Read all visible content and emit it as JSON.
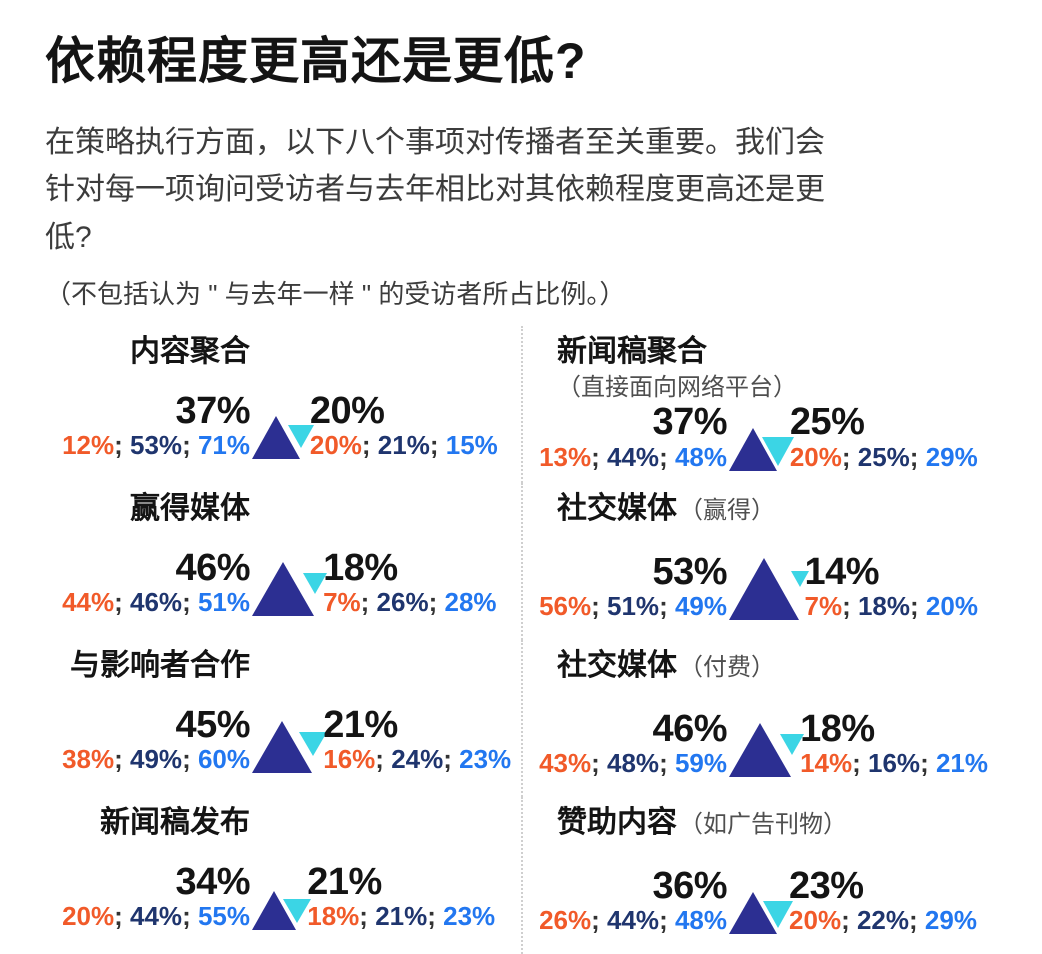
{
  "header": {
    "title": "依赖程度更高还是更低?",
    "description": "在策略执行方面，以下八个事项对传播者至关重要。我们会针对每一项询问受访者与去年相比对其依赖程度更高还是更低?",
    "note": "（不包括认为 \" 与去年一样 \" 的受访者所占比例。）"
  },
  "colors": {
    "up_triangle": "#2c2f92",
    "down_triangle": "#3bd5e5",
    "breakdown_1": "#f15a29",
    "breakdown_2": "#1f356e",
    "breakdown_3": "#2277f0",
    "separator": "#333333",
    "heading": "#141414",
    "body_text": "#3c3c3c",
    "note_text": "#4f4f4f",
    "divider": "#cfcfcf"
  },
  "chart_data": {
    "type": "pictogram",
    "title": "依赖程度更高还是更低?",
    "unit": "%",
    "layout": "2-column grid, up-triangle = reliance higher, down-triangle = reliance lower, triangle size proportional to value",
    "items": [
      {
        "name": "内容聚合",
        "note": "",
        "increase": {
          "pct": 37,
          "breakdown": [
            12,
            53,
            71
          ]
        },
        "decrease": {
          "pct": 20,
          "breakdown": [
            20,
            21,
            15
          ]
        }
      },
      {
        "name": "新闻稿聚合",
        "note": "（直接面向网络平台）",
        "note_block": true,
        "increase": {
          "pct": 37,
          "breakdown": [
            13,
            44,
            48
          ]
        },
        "decrease": {
          "pct": 25,
          "breakdown": [
            20,
            25,
            29
          ]
        }
      },
      {
        "name": "赢得媒体",
        "note": "",
        "increase": {
          "pct": 46,
          "breakdown": [
            44,
            46,
            51
          ]
        },
        "decrease": {
          "pct": 18,
          "breakdown": [
            7,
            26,
            28
          ]
        }
      },
      {
        "name": "社交媒体",
        "note": "（赢得）",
        "increase": {
          "pct": 53,
          "breakdown": [
            56,
            51,
            49
          ]
        },
        "decrease": {
          "pct": 14,
          "breakdown": [
            7,
            18,
            20
          ]
        }
      },
      {
        "name": "与影响者合作",
        "note": "",
        "increase": {
          "pct": 45,
          "breakdown": [
            38,
            49,
            60
          ]
        },
        "decrease": {
          "pct": 21,
          "breakdown": [
            16,
            24,
            23
          ]
        }
      },
      {
        "name": "社交媒体",
        "note": "（付费）",
        "increase": {
          "pct": 46,
          "breakdown": [
            43,
            48,
            59
          ]
        },
        "decrease": {
          "pct": 18,
          "breakdown": [
            14,
            16,
            21
          ]
        }
      },
      {
        "name": "新闻稿发布",
        "note": "",
        "increase": {
          "pct": 34,
          "breakdown": [
            20,
            44,
            55
          ]
        },
        "decrease": {
          "pct": 21,
          "breakdown": [
            18,
            21,
            23
          ]
        }
      },
      {
        "name": "赞助内容",
        "note": "（如广告刊物）",
        "increase": {
          "pct": 36,
          "breakdown": [
            26,
            44,
            48
          ]
        },
        "decrease": {
          "pct": 23,
          "breakdown": [
            20,
            22,
            29
          ]
        }
      }
    ]
  }
}
